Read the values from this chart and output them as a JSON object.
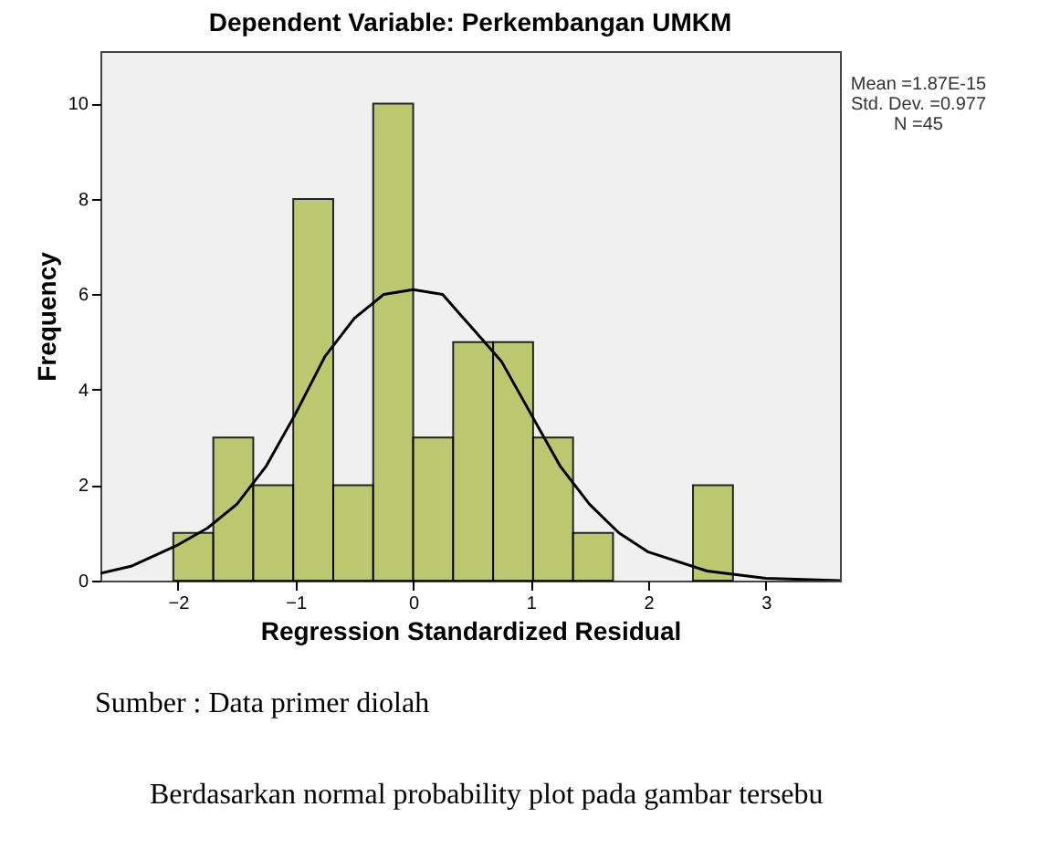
{
  "chart_data": {
    "type": "histogram",
    "title": "Dependent Variable: Perkembangan UMKM",
    "xlabel": "Regression Standardized Residual",
    "ylabel": "Frequency",
    "bins": [
      -2.04,
      -1.7,
      -1.36,
      -1.02,
      -0.68,
      -0.34,
      0,
      0.34,
      0.68,
      1.02,
      1.36,
      1.7,
      2.04,
      2.38,
      2.72
    ],
    "values": [
      1,
      3,
      2,
      8,
      2,
      10,
      3,
      5,
      5,
      3,
      1,
      0,
      0,
      2
    ],
    "color": "#b3c25a",
    "series": [
      {
        "type": "line",
        "color": "#000000",
        "x": [
          -2.66,
          -2.4,
          -2,
          -1.75,
          -1.5,
          -1.25,
          -1,
          -0.75,
          -0.5,
          -0.25,
          0,
          0.25,
          0.5,
          0.75,
          1,
          1.25,
          1.5,
          1.75,
          2,
          2.5,
          3,
          3.63
        ],
        "values": [
          0.15,
          0.3,
          0.75,
          1.1,
          1.6,
          2.4,
          3.5,
          4.7,
          5.5,
          6.0,
          6.1,
          6.0,
          5.3,
          4.6,
          3.5,
          2.4,
          1.6,
          1.0,
          0.6,
          0.2,
          0.05,
          0.0
        ]
      }
    ],
    "xlim": [
      -2.66,
      3.63
    ],
    "ylim": [
      0,
      11.1
    ],
    "xticks": [
      -2,
      -1,
      0,
      1,
      2,
      3
    ],
    "yticks": [
      0,
      2,
      4,
      6,
      8,
      10
    ],
    "grid": false,
    "annotations": [
      "Mean =1.87E-15",
      "Std. Dev. =0.977",
      "N =45",
      "Sumber : Data primer diolah",
      "Berdasarkan normal probability plot pada gambar tersebu"
    ]
  }
}
